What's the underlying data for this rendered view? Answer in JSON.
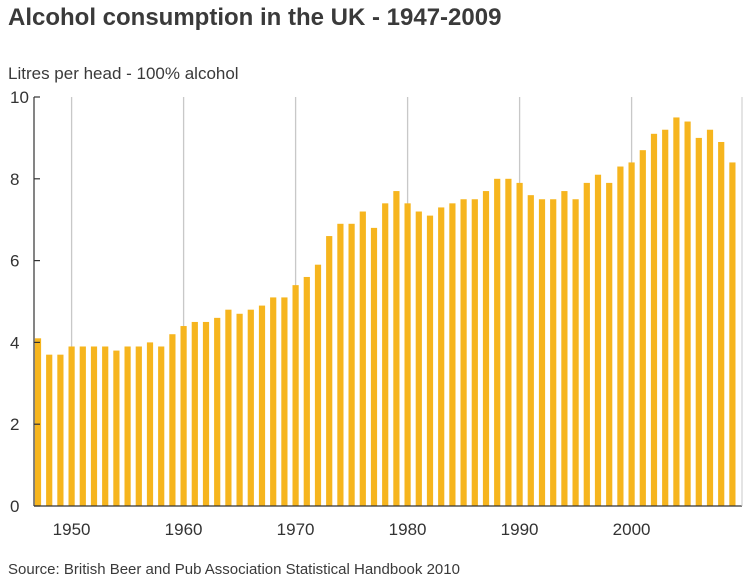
{
  "title": "Alcohol consumption in the UK - 1947-2009",
  "source": "Source: British Beer and Pub Association Statistical Handbook 2010",
  "colors": {
    "bar": "#f6b51e",
    "grid": "#c8c8c8",
    "axis": "#333333",
    "text": "#333333"
  },
  "chart_data": {
    "type": "bar",
    "title": "Alcohol consumption in the UK - 1947-2009",
    "ylabel": "Litres per head - 100% alcohol",
    "xlabel": "",
    "ylim": [
      0,
      10
    ],
    "xlim": [
      1947,
      2009
    ],
    "y_ticks": [
      "0",
      "2",
      "4",
      "6",
      "8",
      "10"
    ],
    "x_ticks": [
      "1950",
      "1960",
      "1970",
      "1980",
      "1990",
      "2000"
    ],
    "grid": "vertical gridlines at decades",
    "legend": "none",
    "categories": [
      1947,
      1948,
      1949,
      1950,
      1951,
      1952,
      1953,
      1954,
      1955,
      1956,
      1957,
      1958,
      1959,
      1960,
      1961,
      1962,
      1963,
      1964,
      1965,
      1966,
      1967,
      1968,
      1969,
      1970,
      1971,
      1972,
      1973,
      1974,
      1975,
      1976,
      1977,
      1978,
      1979,
      1980,
      1981,
      1982,
      1983,
      1984,
      1985,
      1986,
      1987,
      1988,
      1989,
      1990,
      1991,
      1992,
      1993,
      1994,
      1995,
      1996,
      1997,
      1998,
      1999,
      2000,
      2001,
      2002,
      2003,
      2004,
      2005,
      2006,
      2007,
      2008,
      2009
    ],
    "values": [
      4.1,
      3.7,
      3.7,
      3.9,
      3.9,
      3.9,
      3.9,
      3.8,
      3.9,
      3.9,
      4.0,
      3.9,
      4.2,
      4.4,
      4.5,
      4.5,
      4.6,
      4.8,
      4.7,
      4.8,
      4.9,
      5.1,
      5.1,
      5.4,
      5.6,
      5.9,
      6.6,
      6.9,
      6.9,
      7.2,
      6.8,
      7.4,
      7.7,
      7.4,
      7.2,
      7.1,
      7.3,
      7.4,
      7.5,
      7.5,
      7.7,
      8.0,
      8.0,
      7.9,
      7.6,
      7.5,
      7.5,
      7.7,
      7.5,
      7.9,
      8.1,
      7.9,
      8.3,
      8.4,
      8.7,
      9.1,
      9.2,
      9.5,
      9.4,
      9.0,
      9.2,
      8.9,
      8.4
    ]
  }
}
